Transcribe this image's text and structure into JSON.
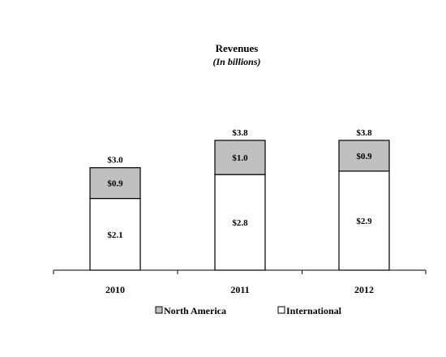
{
  "chart_data": {
    "type": "bar",
    "stacked": true,
    "title": "Revenues",
    "subtitle": "(In billions)",
    "categories": [
      "2010",
      "2011",
      "2012"
    ],
    "series": [
      {
        "name": "International",
        "values": [
          2.1,
          2.8,
          2.9
        ],
        "labels": [
          "$2.1",
          "$2.8",
          "$2.9"
        ],
        "color": "#ffffff"
      },
      {
        "name": "North America",
        "values": [
          0.9,
          1.0,
          0.9
        ],
        "labels": [
          "$0.9",
          "$1.0",
          "$0.9"
        ],
        "color": "#c0c0c0"
      }
    ],
    "totals": [
      3.0,
      3.8,
      3.8
    ],
    "total_labels": [
      "$3.0",
      "$3.8",
      "$3.8"
    ],
    "ylim": [
      0,
      4.5
    ],
    "grid": false,
    "legend": {
      "placement": "bottom",
      "order": [
        "North America",
        "International"
      ]
    },
    "bar_stroke_color": "#000000",
    "axis_color": "#000000"
  }
}
